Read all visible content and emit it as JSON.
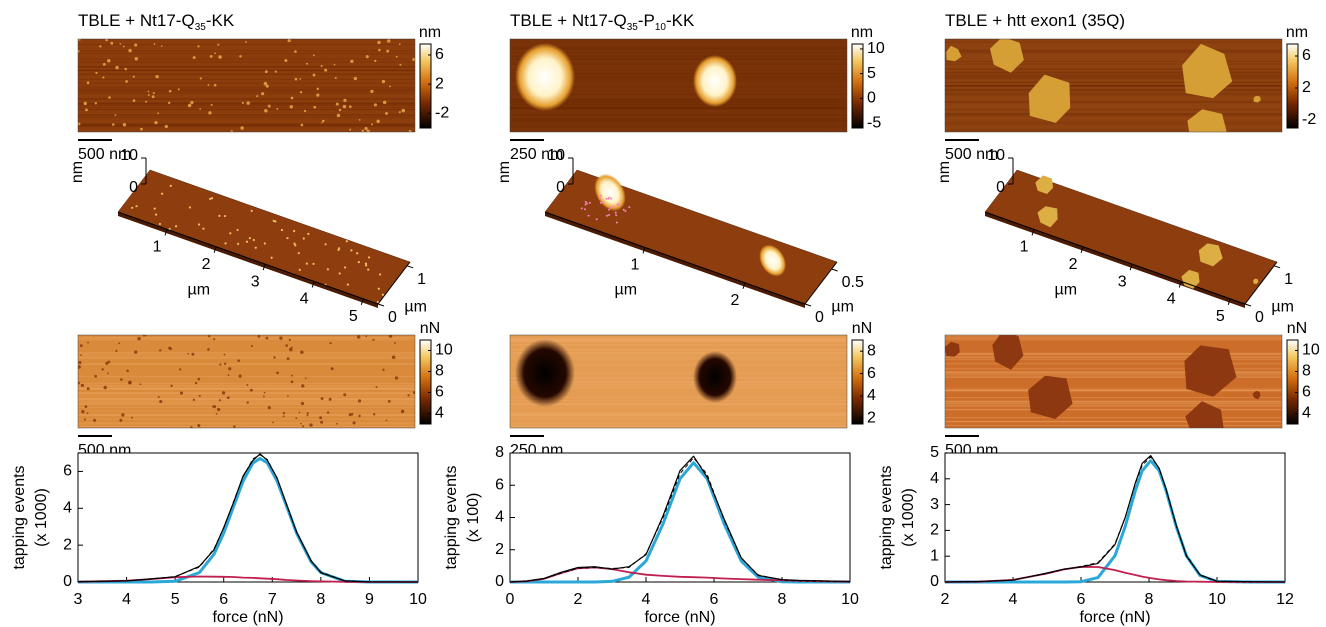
{
  "panels": [
    {
      "title": [
        {
          "text": "TBLE + Nt17-Q"
        },
        {
          "text": "35",
          "sub": true
        },
        {
          "text": "-KK"
        }
      ],
      "height_map": {
        "unit": "nm",
        "scale_bar": "500 nm",
        "colorbar": {
          "lim": [
            -4,
            7.5
          ],
          "ticks": [
            6,
            2,
            -2
          ]
        }
      },
      "view_3d": {
        "z_label": "nm",
        "x_label": "µm",
        "y_label": "µm",
        "xlim": [
          0,
          5.3
        ],
        "xticks": [
          1,
          2,
          3,
          4,
          5
        ],
        "ylim": [
          0,
          1.1
        ],
        "yticks": [
          0,
          1
        ],
        "zlim": [
          0,
          10
        ],
        "zticks": [
          10,
          0
        ]
      },
      "force_map": {
        "unit": "nN",
        "scale_bar": "500 nm",
        "colorbar": {
          "lim": [
            3,
            11
          ],
          "ticks": [
            10,
            8,
            6,
            4
          ]
        }
      }
    },
    {
      "title": [
        {
          "text": "TBLE + Nt17-Q"
        },
        {
          "text": "35",
          "sub": true
        },
        {
          "text": "-P"
        },
        {
          "text": "10",
          "sub": true
        },
        {
          "text": "-KK"
        }
      ],
      "height_map": {
        "unit": "nm",
        "scale_bar": "250 nm",
        "colorbar": {
          "lim": [
            -6,
            11
          ],
          "ticks": [
            10,
            5,
            0,
            -5
          ]
        }
      },
      "view_3d": {
        "z_label": "nm",
        "x_label": "µm",
        "y_label": "µm",
        "xlim": [
          0,
          2.6
        ],
        "xticks": [
          1,
          2
        ],
        "ylim": [
          0,
          0.6
        ],
        "yticks": [
          0,
          0.5
        ],
        "zlim": [
          0,
          10
        ],
        "zticks": [
          10,
          0
        ]
      },
      "force_map": {
        "unit": "nN",
        "scale_bar": "250 nm",
        "colorbar": {
          "lim": [
            1.5,
            9
          ],
          "ticks": [
            8,
            6,
            4,
            2
          ]
        }
      }
    },
    {
      "title": [
        {
          "text": "TBLE + htt exon1 (35Q)"
        }
      ],
      "height_map": {
        "unit": "nm",
        "scale_bar": "500 nm",
        "colorbar": {
          "lim": [
            -3,
            7.5
          ],
          "ticks": [
            6,
            2,
            -2
          ]
        }
      },
      "view_3d": {
        "z_label": "nm",
        "x_label": "µm",
        "y_label": "µm",
        "xlim": [
          0,
          5.3
        ],
        "xticks": [
          1,
          2,
          3,
          4,
          5
        ],
        "ylim": [
          0,
          1.1
        ],
        "yticks": [
          0,
          1
        ],
        "zlim": [
          0,
          10
        ],
        "zticks": [
          10,
          0
        ]
      },
      "force_map": {
        "unit": "nN",
        "scale_bar": "500 nm",
        "colorbar": {
          "lim": [
            3,
            11
          ],
          "ticks": [
            10,
            8,
            6,
            4
          ]
        }
      }
    }
  ],
  "chart_data": [
    {
      "type": "line",
      "y_label": [
        "tapping events",
        "(x 1000)"
      ],
      "x_label": "force (nN)",
      "xlim": [
        3,
        10
      ],
      "xticks": [
        3,
        4,
        5,
        6,
        7,
        8,
        9,
        10
      ],
      "ylim": [
        0,
        7
      ],
      "yticks": [
        0,
        2,
        4,
        6
      ],
      "x": [
        3,
        4,
        4.5,
        5,
        5.5,
        5.8,
        6,
        6.2,
        6.4,
        6.6,
        6.75,
        6.9,
        7.1,
        7.3,
        7.5,
        7.8,
        8,
        8.5,
        9,
        10
      ],
      "series": [
        {
          "color": "#2aa8d8",
          "width": 3,
          "values": [
            0,
            0,
            0,
            0.04,
            0.51,
            1.51,
            2.65,
            4.07,
            5.47,
            6.46,
            6.7,
            6.46,
            5.47,
            4.07,
            2.65,
            1.09,
            0.51,
            0.04,
            0,
            0
          ]
        },
        {
          "color": "#c0204f",
          "width": 1.8,
          "values": [
            0.01,
            0.07,
            0.16,
            0.26,
            0.3,
            0.29,
            0.28,
            0.27,
            0.24,
            0.22,
            0.2,
            0.18,
            0.15,
            0.11,
            0.08,
            0.05,
            0.03,
            0.01,
            0,
            0
          ]
        },
        {
          "color": "#000000",
          "width": 1.2,
          "values": [
            0.02,
            0.06,
            0.17,
            0.28,
            0.85,
            1.75,
            2.95,
            4.3,
            5.75,
            6.6,
            6.95,
            6.6,
            5.65,
            4.15,
            2.7,
            1.15,
            0.5,
            0.06,
            0.01,
            0
          ]
        },
        {
          "color": "#000000",
          "width": 1,
          "dash": true,
          "values": [
            0.01,
            0.07,
            0.16,
            0.3,
            0.81,
            1.8,
            2.93,
            4.34,
            5.71,
            6.68,
            6.9,
            6.64,
            5.62,
            4.18,
            2.73,
            1.14,
            0.54,
            0.05,
            0,
            0
          ]
        }
      ]
    },
    {
      "type": "line",
      "y_label": [
        "tapping events",
        "(x 100)"
      ],
      "x_label": "force (nN)",
      "xlim": [
        0,
        10
      ],
      "xticks": [
        0,
        2,
        4,
        6,
        8,
        10
      ],
      "ylim": [
        0,
        8
      ],
      "yticks": [
        0,
        2,
        4,
        6,
        8
      ],
      "x": [
        0,
        0.5,
        1,
        1.5,
        2,
        2.5,
        3,
        3.5,
        4,
        4.5,
        5,
        5.4,
        5.8,
        6.3,
        6.8,
        7.3,
        8,
        8.5,
        9,
        10
      ],
      "series": [
        {
          "color": "#2aa8d8",
          "width": 3,
          "values": [
            0,
            0,
            0,
            0,
            0,
            0,
            0.04,
            0.3,
            1.3,
            3.6,
            6.4,
            7.4,
            6.4,
            3.6,
            1.3,
            0.3,
            0.02,
            0,
            0,
            0
          ]
        },
        {
          "color": "#c0204f",
          "width": 1.8,
          "values": [
            0,
            0.05,
            0.2,
            0.55,
            0.85,
            0.9,
            0.8,
            0.6,
            0.45,
            0.38,
            0.32,
            0.3,
            0.27,
            0.22,
            0.18,
            0.14,
            0.1,
            0.07,
            0.05,
            0.02
          ]
        },
        {
          "color": "#000000",
          "width": 1.2,
          "values": [
            0,
            0.06,
            0.22,
            0.6,
            0.9,
            0.95,
            0.8,
            0.95,
            1.7,
            4.1,
            6.9,
            7.8,
            6.5,
            3.9,
            1.5,
            0.4,
            0.15,
            0.1,
            0.08,
            0.03
          ]
        },
        {
          "color": "#000000",
          "width": 1,
          "dash": true,
          "values": [
            0,
            0.05,
            0.2,
            0.55,
            0.85,
            0.9,
            0.84,
            0.9,
            1.75,
            3.98,
            6.72,
            7.7,
            6.67,
            3.82,
            1.48,
            0.44,
            0.12,
            0.07,
            0.05,
            0.02
          ]
        }
      ]
    },
    {
      "type": "line",
      "y_label": [
        "tapping events",
        "(x 1000)"
      ],
      "x_label": "force (nN)",
      "xlim": [
        2,
        12
      ],
      "xticks": [
        2,
        4,
        6,
        8,
        10,
        12
      ],
      "ylim": [
        0,
        5
      ],
      "yticks": [
        0,
        1,
        2,
        3,
        4,
        5
      ],
      "x": [
        2,
        3,
        4,
        5,
        5.5,
        6,
        6.5,
        7,
        7.3,
        7.6,
        7.8,
        8.05,
        8.3,
        8.5,
        8.8,
        9.1,
        9.5,
        10,
        11,
        12
      ],
      "series": [
        {
          "color": "#2aa8d8",
          "width": 3,
          "values": [
            0,
            0,
            0,
            0,
            0,
            0.01,
            0.17,
            1.02,
            2.15,
            3.55,
            4.31,
            4.7,
            4.31,
            3.55,
            2.15,
            1.02,
            0.25,
            0.02,
            0,
            0
          ]
        },
        {
          "color": "#c0204f",
          "width": 1.8,
          "values": [
            0,
            0.01,
            0.08,
            0.33,
            0.49,
            0.59,
            0.58,
            0.46,
            0.36,
            0.27,
            0.21,
            0.15,
            0.1,
            0.07,
            0.04,
            0.02,
            0.01,
            0,
            0,
            0
          ]
        },
        {
          "color": "#000000",
          "width": 1.2,
          "values": [
            0,
            0.02,
            0.07,
            0.35,
            0.5,
            0.58,
            0.72,
            1.45,
            2.5,
            3.85,
            4.6,
            4.9,
            4.4,
            3.6,
            2.2,
            1.0,
            0.28,
            0.03,
            0.01,
            0
          ]
        },
        {
          "color": "#000000",
          "width": 1,
          "dash": true,
          "values": [
            0,
            0.01,
            0.08,
            0.33,
            0.49,
            0.6,
            0.75,
            1.48,
            2.51,
            3.82,
            4.52,
            4.85,
            4.41,
            3.62,
            2.19,
            1.04,
            0.26,
            0.02,
            0,
            0
          ]
        }
      ]
    }
  ]
}
